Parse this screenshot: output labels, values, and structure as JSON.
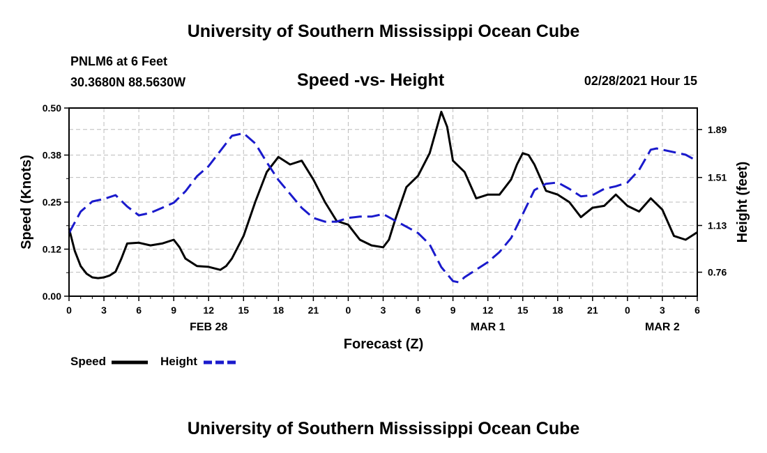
{
  "header": {
    "title_top": "University of Southern Mississippi Ocean Cube",
    "title_bottom": "University of Southern Mississippi Ocean Cube",
    "station": "PNLM6 at 6 Feet",
    "coords": "30.3680N 88.5630W",
    "chart_title": "Speed -vs- Height",
    "datetime": "02/28/2021 Hour 15"
  },
  "legend": {
    "speed_label": "Speed",
    "height_label": "Height"
  },
  "colors": {
    "speed": "#000000",
    "height": "#1a1acc",
    "grid": "#bbbbbb"
  },
  "chart_data": {
    "type": "line",
    "title": "Speed -vs- Height",
    "xlabel": "Forecast (Z)",
    "ylabel": "Speed (Knots)",
    "y2label": "Height (feet)",
    "xlim": [
      0,
      54
    ],
    "ylim": [
      0,
      0.5
    ],
    "y2lim": [
      0.57,
      2.06
    ],
    "x_ticks": [
      0,
      3,
      6,
      9,
      12,
      15,
      18,
      21,
      24,
      27,
      30,
      33,
      36,
      39,
      42,
      45,
      48,
      51,
      54
    ],
    "x_tick_labels": [
      "0",
      "3",
      "6",
      "9",
      "12",
      "15",
      "18",
      "21",
      "0",
      "3",
      "6",
      "9",
      "12",
      "15",
      "18",
      "21",
      "0",
      "3",
      "6"
    ],
    "day_labels": [
      {
        "x": 12,
        "label": "FEB 28"
      },
      {
        "x": 36,
        "label": "MAR 1"
      },
      {
        "x": 51,
        "label": "MAR 2"
      }
    ],
    "y_ticks": [
      0.0,
      0.125,
      0.25,
      0.375,
      0.5
    ],
    "y_tick_labels": [
      "0.00",
      "0.12",
      "0.25",
      "0.38",
      "0.50"
    ],
    "y2_ticks": [
      0.76,
      1.13,
      1.51,
      1.89
    ],
    "y2_tick_labels": [
      "0.76",
      "1.13",
      "1.51",
      "1.89"
    ],
    "grid": true,
    "series": [
      {
        "name": "Speed",
        "axis": "left",
        "style": "solid",
        "x": [
          0,
          0.5,
          1,
          1.5,
          2,
          2.5,
          3,
          3.5,
          4,
          4.5,
          5,
          6,
          7,
          8,
          9,
          9.5,
          10,
          11,
          12,
          13,
          13.5,
          14,
          15,
          16,
          17,
          18,
          19,
          20,
          21,
          22,
          23,
          24,
          25,
          26,
          27,
          27.5,
          28,
          29,
          30,
          31,
          32,
          32.5,
          33,
          34,
          35,
          35.5,
          36,
          37,
          38,
          38.5,
          39,
          39.5,
          40,
          41,
          42,
          43,
          44,
          45,
          46,
          47,
          48,
          49,
          50,
          51,
          52,
          53,
          53.5,
          54
        ],
        "values": [
          0.18,
          0.12,
          0.08,
          0.06,
          0.05,
          0.048,
          0.05,
          0.055,
          0.065,
          0.1,
          0.14,
          0.142,
          0.135,
          0.14,
          0.15,
          0.13,
          0.1,
          0.08,
          0.078,
          0.07,
          0.08,
          0.1,
          0.16,
          0.25,
          0.33,
          0.37,
          0.35,
          0.36,
          0.31,
          0.25,
          0.2,
          0.19,
          0.15,
          0.135,
          0.13,
          0.15,
          0.2,
          0.29,
          0.32,
          0.38,
          0.49,
          0.45,
          0.36,
          0.33,
          0.26,
          0.265,
          0.27,
          0.27,
          0.31,
          0.35,
          0.38,
          0.375,
          0.35,
          0.28,
          0.27,
          0.25,
          0.21,
          0.235,
          0.24,
          0.27,
          0.24,
          0.225,
          0.26,
          0.23,
          0.16,
          0.15,
          0.16,
          0.17
        ]
      },
      {
        "name": "Height",
        "axis": "right",
        "style": "dashed",
        "x": [
          0,
          1,
          2,
          3,
          4,
          5,
          6,
          7,
          8,
          9,
          10,
          11,
          12,
          13,
          14,
          15,
          16,
          17,
          18,
          19,
          20,
          21,
          22,
          23,
          24,
          25,
          26,
          27,
          28,
          29,
          30,
          31,
          32,
          33,
          33.5,
          34,
          35,
          36,
          37,
          38,
          39,
          40,
          41,
          42,
          43,
          44,
          45,
          46,
          47,
          48,
          49,
          50,
          50.5,
          51,
          52,
          53,
          54
        ],
        "values": [
          1.07,
          1.24,
          1.32,
          1.34,
          1.37,
          1.28,
          1.21,
          1.23,
          1.27,
          1.31,
          1.4,
          1.52,
          1.6,
          1.72,
          1.84,
          1.86,
          1.78,
          1.63,
          1.49,
          1.38,
          1.27,
          1.19,
          1.16,
          1.16,
          1.19,
          1.2,
          1.2,
          1.22,
          1.17,
          1.12,
          1.07,
          0.98,
          0.8,
          0.69,
          0.68,
          0.72,
          0.78,
          0.84,
          0.92,
          1.03,
          1.22,
          1.41,
          1.46,
          1.47,
          1.42,
          1.36,
          1.37,
          1.42,
          1.44,
          1.47,
          1.57,
          1.73,
          1.74,
          1.73,
          1.71,
          1.69,
          1.64
        ]
      }
    ]
  }
}
